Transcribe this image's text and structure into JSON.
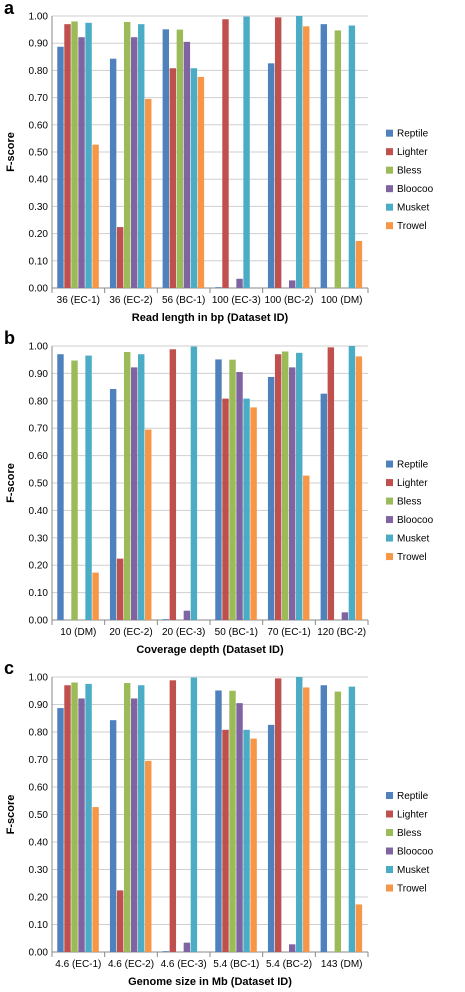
{
  "colors": {
    "Reptile": "#4F81BD",
    "Lighter": "#C0504D",
    "Bless": "#9BBB59",
    "Bloocoo": "#8064A2",
    "Musket": "#4BACC6",
    "Trowel": "#F79646"
  },
  "chart_data": [
    {
      "type": "bar",
      "panel": "a",
      "xlabel": "Read length in bp (Dataset ID)",
      "ylabel": "F-score",
      "ylim": [
        0,
        1.0
      ],
      "yticks": [
        "0.00",
        "0.10",
        "0.20",
        "0.30",
        "0.40",
        "0.50",
        "0.60",
        "0.70",
        "0.80",
        "0.90",
        "1.00"
      ],
      "grid": true,
      "legend_position": "right",
      "categories": [
        "36 (EC-1)",
        "36 (EC-2)",
        "56 (BC-1)",
        "100 (EC-3)",
        "100 (BC-2)",
        "100 (DM)"
      ],
      "series": [
        {
          "name": "Reptile",
          "values": [
            0.887,
            0.843,
            0.951,
            0.003,
            0.826,
            0.97
          ]
        },
        {
          "name": "Lighter",
          "values": [
            0.97,
            0.224,
            0.808,
            0.988,
            0.995,
            0.0
          ]
        },
        {
          "name": "Bless",
          "values": [
            0.98,
            0.978,
            0.95,
            0.0,
            0.0,
            0.947
          ]
        },
        {
          "name": "Bloocoo",
          "values": [
            0.922,
            0.922,
            0.905,
            0.034,
            0.028,
            0.0
          ]
        },
        {
          "name": "Musket",
          "values": [
            0.975,
            0.97,
            0.808,
            0.998,
            1.0,
            0.965
          ]
        },
        {
          "name": "Trowel",
          "values": [
            0.527,
            0.695,
            0.776,
            0.0,
            0.962,
            0.173
          ]
        }
      ]
    },
    {
      "type": "bar",
      "panel": "b",
      "xlabel": "Coverage depth (Dataset ID)",
      "ylabel": "F-score",
      "ylim": [
        0,
        1.0
      ],
      "yticks": [
        "0.00",
        "0.10",
        "0.20",
        "0.30",
        "0.40",
        "0.50",
        "0.60",
        "0.70",
        "0.80",
        "0.90",
        "1.00"
      ],
      "grid": true,
      "legend_position": "right",
      "categories": [
        "10 (DM)",
        "20 (EC-2)",
        "20 (EC-3)",
        "50 (BC-1)",
        "70 (EC-1)",
        "120 (BC-2)"
      ],
      "series": [
        {
          "name": "Reptile",
          "values": [
            0.97,
            0.843,
            0.003,
            0.951,
            0.887,
            0.826
          ]
        },
        {
          "name": "Lighter",
          "values": [
            0.0,
            0.224,
            0.988,
            0.808,
            0.97,
            0.995
          ]
        },
        {
          "name": "Bless",
          "values": [
            0.947,
            0.978,
            0.0,
            0.95,
            0.98,
            0.0
          ]
        },
        {
          "name": "Bloocoo",
          "values": [
            0.0,
            0.922,
            0.034,
            0.905,
            0.922,
            0.028
          ]
        },
        {
          "name": "Musket",
          "values": [
            0.965,
            0.97,
            0.998,
            0.808,
            0.975,
            1.0
          ]
        },
        {
          "name": "Trowel",
          "values": [
            0.173,
            0.695,
            0.0,
            0.776,
            0.527,
            0.962
          ]
        }
      ]
    },
    {
      "type": "bar",
      "panel": "c",
      "xlabel": "Genome size in Mb (Dataset ID)",
      "ylabel": "F-score",
      "ylim": [
        0,
        1.0
      ],
      "yticks": [
        "0.00",
        "0.10",
        "0.20",
        "0.30",
        "0.40",
        "0.50",
        "0.60",
        "0.70",
        "0.80",
        "0.90",
        "1.00"
      ],
      "grid": true,
      "legend_position": "right",
      "categories": [
        "4.6 (EC-1)",
        "4.6 (EC-2)",
        "4.6 (EC-3)",
        "5.4 (BC-1)",
        "5.4 (BC-2)",
        "143 (DM)"
      ],
      "series": [
        {
          "name": "Reptile",
          "values": [
            0.887,
            0.843,
            0.003,
            0.951,
            0.826,
            0.97
          ]
        },
        {
          "name": "Lighter",
          "values": [
            0.97,
            0.224,
            0.988,
            0.808,
            0.995,
            0.0
          ]
        },
        {
          "name": "Bless",
          "values": [
            0.98,
            0.978,
            0.0,
            0.95,
            0.0,
            0.947
          ]
        },
        {
          "name": "Bloocoo",
          "values": [
            0.922,
            0.922,
            0.034,
            0.905,
            0.028,
            0.0
          ]
        },
        {
          "name": "Musket",
          "values": [
            0.975,
            0.97,
            0.998,
            0.808,
            1.0,
            0.965
          ]
        },
        {
          "name": "Trowel",
          "values": [
            0.527,
            0.695,
            0.0,
            0.776,
            0.962,
            0.173
          ]
        }
      ]
    }
  ]
}
